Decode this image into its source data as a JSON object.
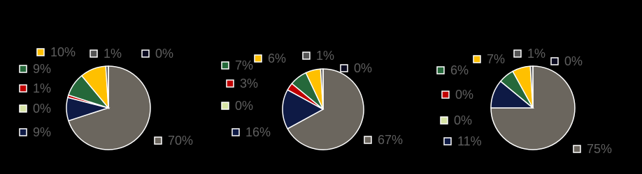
{
  "chart_data": [
    {
      "type": "pie",
      "values": [
        70,
        9,
        0,
        1,
        9,
        10,
        1,
        0
      ],
      "value_labels": [
        "70%",
        "9%",
        "0%",
        "1%",
        "9%",
        "10%",
        "1%",
        "0%"
      ],
      "colors": [
        "#6b665e",
        "#0e1a45",
        "#d6e3a5",
        "#c00000",
        "#25683a",
        "#ffc000",
        "#555555",
        "#0a0a20"
      ]
    },
    {
      "type": "pie",
      "values": [
        67,
        16,
        0,
        3,
        7,
        6,
        1,
        0
      ],
      "value_labels": [
        "67%",
        "16%",
        "0%",
        "3%",
        "7%",
        "6%",
        "1%",
        "0%"
      ],
      "colors": [
        "#6b665e",
        "#0e1a45",
        "#d6e3a5",
        "#c00000",
        "#25683a",
        "#ffc000",
        "#555555",
        "#0a0a20"
      ]
    },
    {
      "type": "pie",
      "values": [
        75,
        11,
        0,
        0,
        6,
        7,
        1,
        0
      ],
      "value_labels": [
        "75%",
        "11%",
        "0%",
        "0%",
        "6%",
        "7%",
        "1%",
        "0%"
      ],
      "colors": [
        "#6b665e",
        "#0e1a45",
        "#d6e3a5",
        "#c00000",
        "#25683a",
        "#ffc000",
        "#555555",
        "#0a0a20"
      ]
    }
  ]
}
